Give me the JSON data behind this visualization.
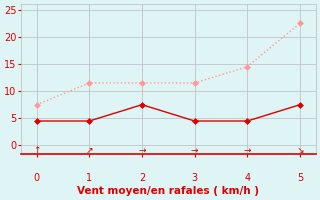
{
  "x": [
    0,
    1,
    2,
    3,
    4,
    5
  ],
  "y_mean": [
    4.5,
    4.5,
    7.5,
    4.5,
    4.5,
    7.5
  ],
  "y_gust": [
    7.5,
    11.5,
    11.5,
    11.5,
    14.5,
    22.5
  ],
  "wind_arrows": [
    "↑",
    "↗",
    "→",
    "→",
    "→",
    "↘"
  ],
  "color_mean": "#dd0000",
  "color_gust": "#ff9999",
  "background_color": "#dff4f4",
  "xlabel": "Vent moyen/en rafales ( km/h )",
  "xlabel_color": "#dd0000",
  "xlabel_fontsize": 7.5,
  "tick_color": "#dd0000",
  "tick_fontsize": 7,
  "grid_color": "#bbbbbb",
  "ylim": [
    -1.5,
    26
  ],
  "xlim": [
    -0.3,
    5.3
  ],
  "yticks": [
    0,
    5,
    10,
    15,
    20,
    25
  ],
  "xticks": [
    0,
    1,
    2,
    3,
    4,
    5
  ],
  "marker_size": 3,
  "line_width": 1.0,
  "arrow_fontsize": 6.5
}
